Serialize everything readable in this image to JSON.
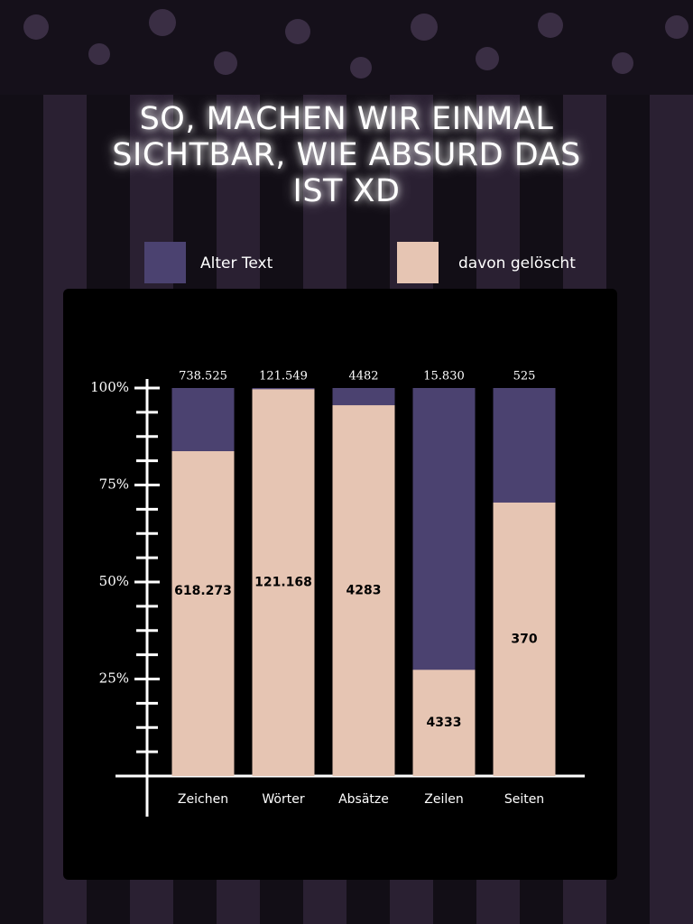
{
  "chart_data": {
    "type": "bar",
    "title": "SO, MACHEN WIR EINMAL SICHTBAR, WIE ABSURD DAS IST XD",
    "categories": [
      "Zeichen",
      "Wörter",
      "Absätze",
      "Zeilen",
      "Seiten"
    ],
    "normalized": true,
    "series": [
      {
        "name": "Alter Text",
        "color": "#4b4270",
        "values": [
          738525,
          121549,
          4482,
          15830,
          525
        ],
        "value_labels": [
          "738.525",
          "121.549",
          "4482",
          "15.830",
          "525"
        ]
      },
      {
        "name": "davon gelöscht",
        "color": "#e6c5b3",
        "values": [
          618273,
          121168,
          4283,
          4333,
          370
        ],
        "value_labels": [
          "618.273",
          "121.168",
          "4283",
          "4333",
          "370"
        ]
      }
    ],
    "ylim": [
      0,
      100
    ],
    "yticks": [
      {
        "value": 25,
        "label": "25%"
      },
      {
        "value": 50,
        "label": "50%"
      },
      {
        "value": 75,
        "label": "75%"
      },
      {
        "value": 100,
        "label": "100%"
      }
    ]
  }
}
